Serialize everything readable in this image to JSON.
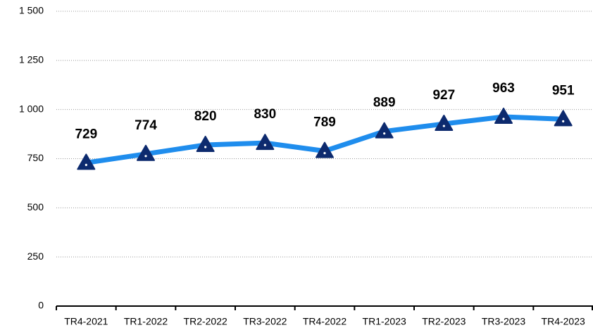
{
  "chart_data": {
    "type": "line",
    "categories": [
      "TR4-2021",
      "TR1-2022",
      "TR2-2022",
      "TR3-2022",
      "TR4-2022",
      "TR1-2023",
      "TR2-2023",
      "TR3-2023",
      "TR4-2023"
    ],
    "series": [
      {
        "color": "#1f8ded",
        "marker_color": "#0d2a6e",
        "values": [
          729,
          774,
          820,
          830,
          789,
          889,
          927,
          963,
          951
        ]
      }
    ],
    "ylim": [
      0,
      1500
    ],
    "yticks": [
      0,
      250,
      500,
      750,
      {
        "value": 1000,
        "label": "1 000"
      },
      {
        "value": 1250,
        "label": "1 250"
      },
      {
        "value": 1500,
        "label": "1 500"
      }
    ],
    "grid": true
  }
}
